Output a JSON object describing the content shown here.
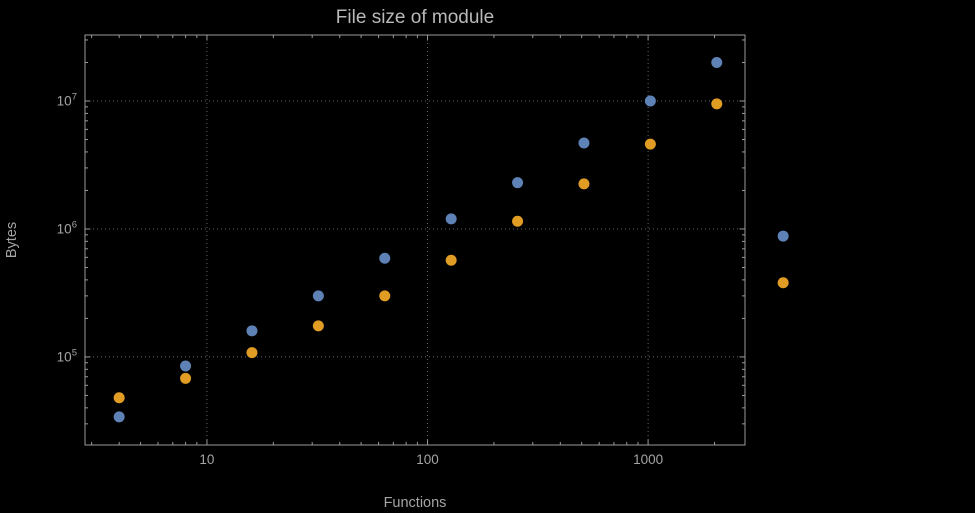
{
  "chart_data": {
    "type": "scatter",
    "title": "File size of module",
    "xlabel": "Functions",
    "ylabel": "Bytes",
    "xscale": "log",
    "yscale": "log",
    "xlim": [
      2.8,
      2750
    ],
    "ylim": [
      20500,
      32800000
    ],
    "grid": "dotted gridlines at major ticks only",
    "legend": "none",
    "x": [
      4,
      8,
      16,
      32,
      64,
      128,
      256,
      512,
      1024,
      2048,
      4096
    ],
    "series": [
      {
        "name": "blue",
        "color": "#5e82b5",
        "values": [
          34000,
          85000,
          160000,
          300000,
          590000,
          1200000,
          2300000,
          4700000,
          10000000,
          20000000,
          880000
        ]
      },
      {
        "name": "orange",
        "color": "#e19c24",
        "values": [
          48000,
          68000,
          108000,
          175000,
          300000,
          570000,
          1150000,
          2250000,
          4600000,
          9500000,
          380000
        ]
      }
    ],
    "xticks": [
      10,
      100,
      1000
    ],
    "yticks": [
      100000,
      1000000,
      10000000
    ],
    "xtick_labels": [
      {
        "value": 10,
        "label": "10"
      },
      {
        "value": 100,
        "label": "100"
      },
      {
        "value": 1000,
        "label": "1000"
      }
    ],
    "ytick_labels": [
      {
        "value": 100000,
        "base": "10",
        "exp": "5"
      },
      {
        "value": 1000000,
        "base": "10",
        "exp": "6"
      },
      {
        "value": 10000000,
        "base": "10",
        "exp": "7"
      }
    ]
  },
  "colors": {
    "background": "#000000",
    "series_blue": "#5e82b5",
    "series_orange": "#e19c24",
    "text": "#a4a4a4",
    "title_text": "#b9b9b9",
    "grid": "#696969",
    "frame": "#9a9a9a"
  }
}
